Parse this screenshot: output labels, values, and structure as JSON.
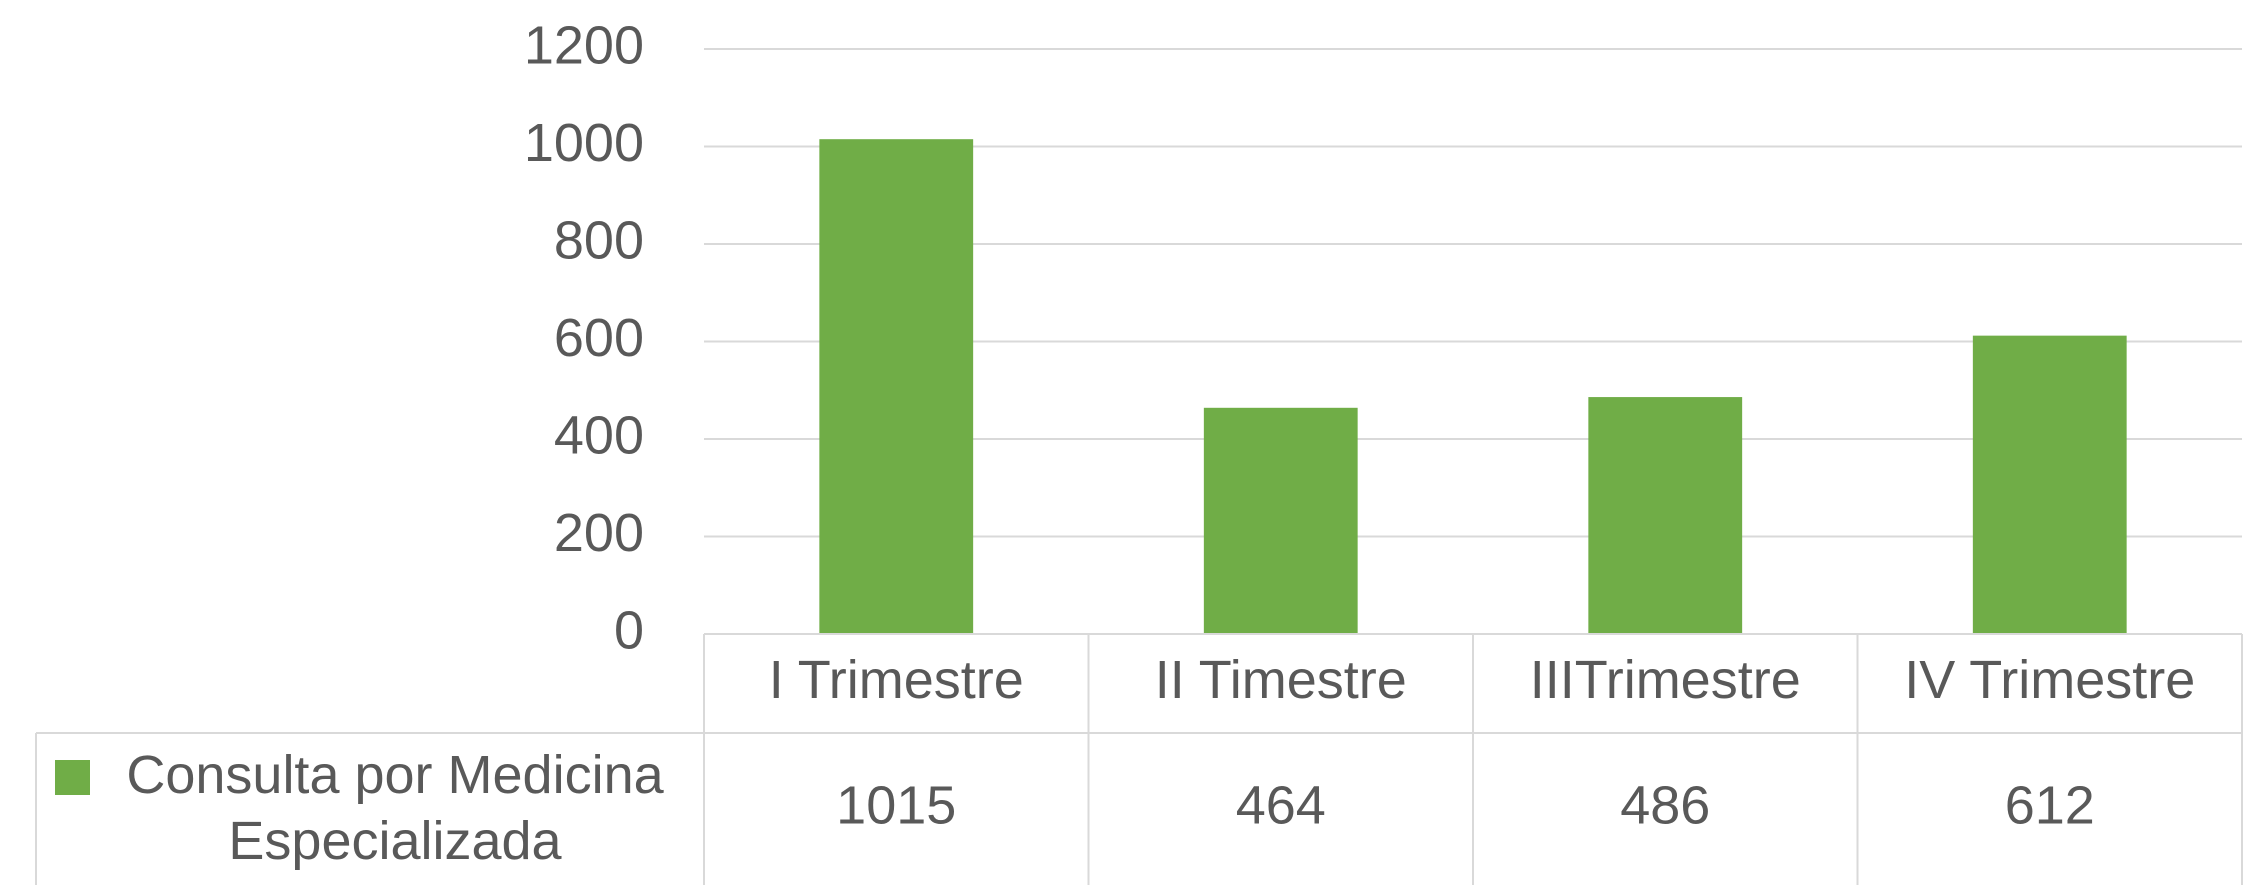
{
  "chart_data": {
    "type": "bar",
    "categories": [
      "I Trimestre",
      "II Timestre",
      "IIITrimestre",
      "IV Trimestre"
    ],
    "series": [
      {
        "name": "Consulta por Medicina Especializada",
        "color": "#70ad47",
        "values": [
          1015,
          464,
          486,
          612
        ]
      }
    ],
    "ylim": [
      0,
      1200
    ],
    "yticks": [
      0,
      200,
      400,
      600,
      800,
      1000,
      1200
    ],
    "grid": true,
    "data_table": true
  }
}
